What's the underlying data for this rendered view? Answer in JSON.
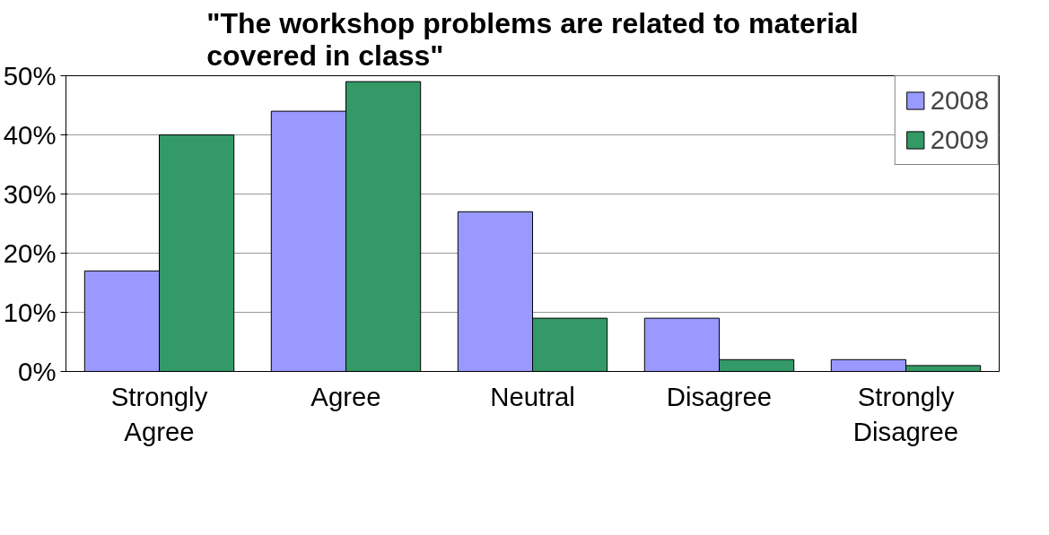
{
  "chart_data": {
    "type": "bar",
    "title": "\"The workshop problems are related to material covered in class\"",
    "categories": [
      "Strongly Agree",
      "Agree",
      "Neutral",
      "Disagree",
      "Strongly Disagree"
    ],
    "series": [
      {
        "name": "2008",
        "color": "#9999ff",
        "values": [
          17,
          44,
          27,
          9,
          2
        ]
      },
      {
        "name": "2009",
        "color": "#339966",
        "values": [
          40,
          49,
          9,
          2,
          1
        ]
      }
    ],
    "ylim": [
      0,
      50
    ],
    "yticks": [
      {
        "value": 0,
        "label": "0%"
      },
      {
        "value": 10,
        "label": "10%"
      },
      {
        "value": 20,
        "label": "20%"
      },
      {
        "value": 30,
        "label": "30%"
      },
      {
        "value": 40,
        "label": "40%"
      },
      {
        "value": 50,
        "label": "50%"
      }
    ],
    "grid": "y",
    "legend": "top right"
  }
}
